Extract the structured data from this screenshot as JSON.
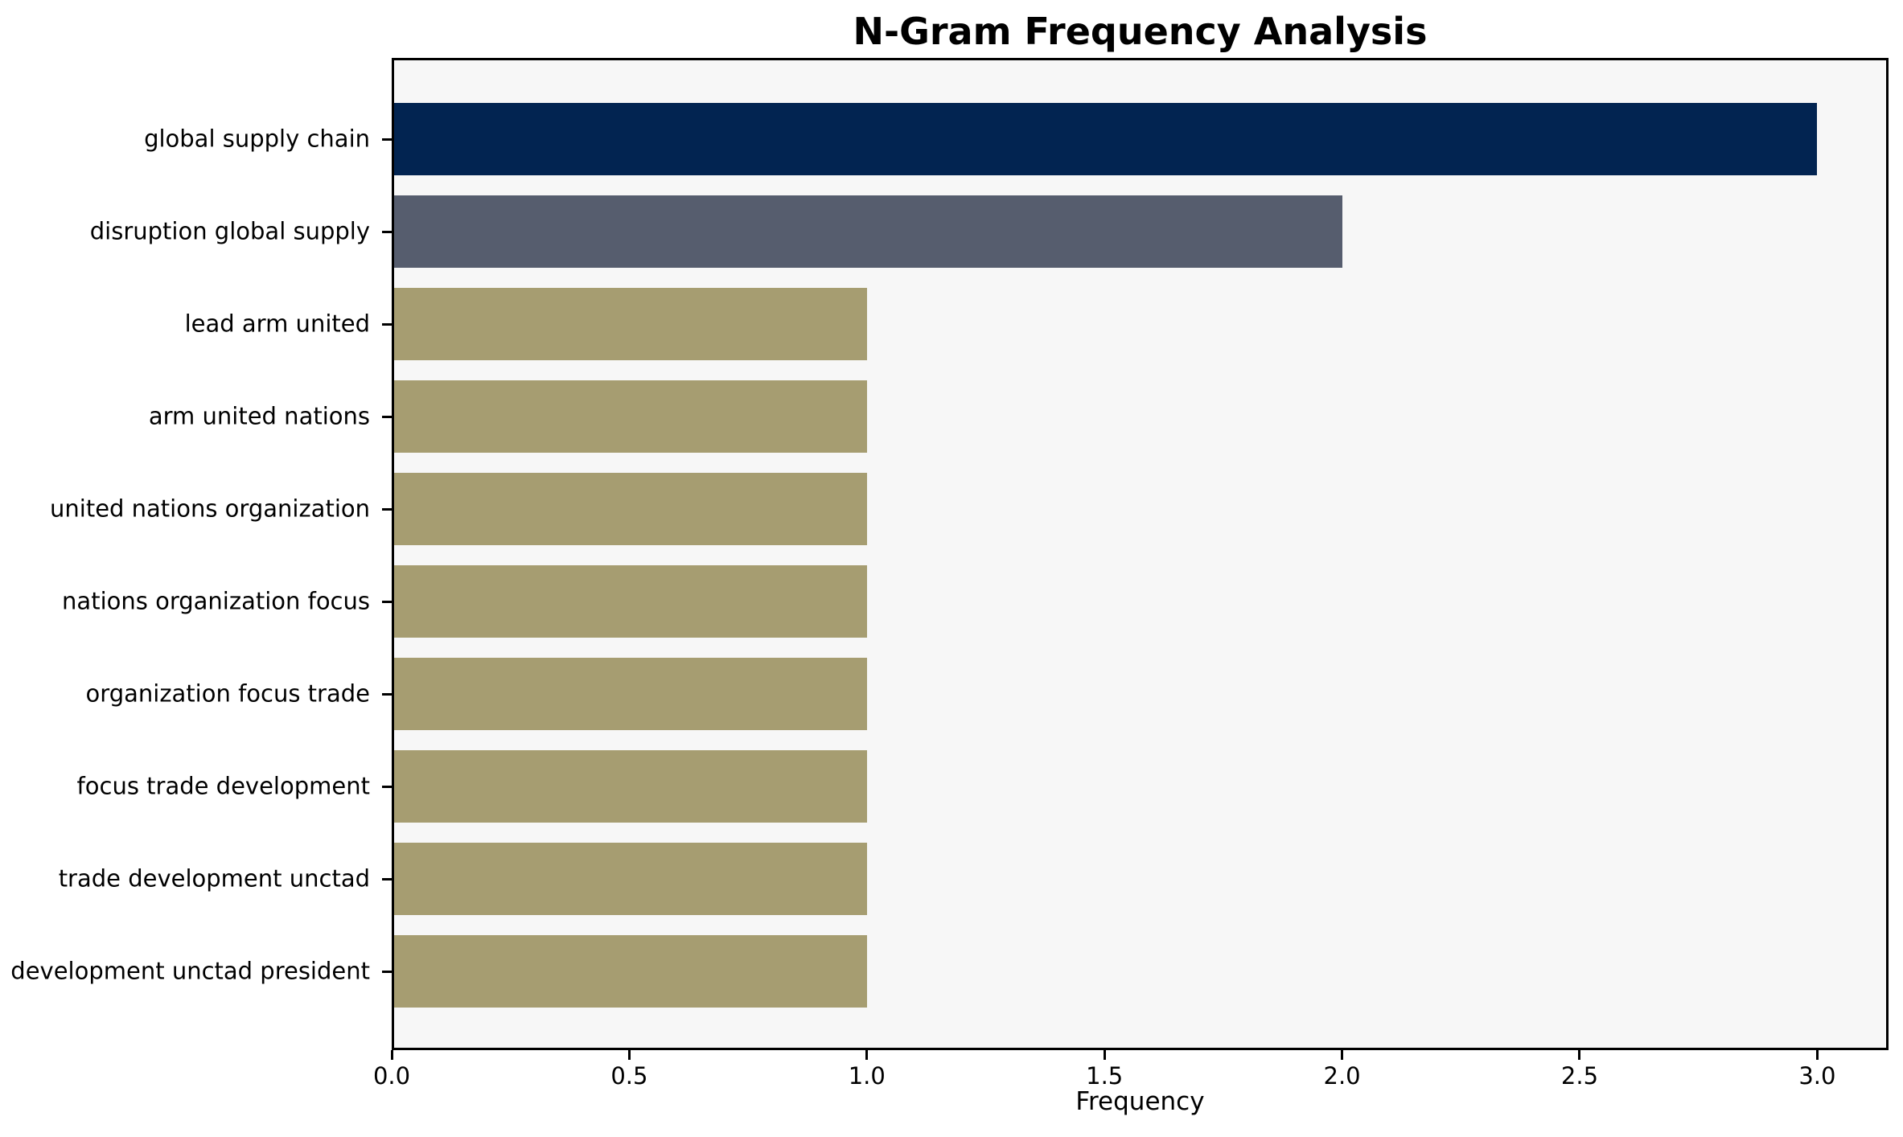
{
  "chart_data": {
    "type": "bar",
    "orientation": "horizontal",
    "title": "N-Gram Frequency Analysis",
    "xlabel": "Frequency",
    "ylabel": "",
    "categories": [
      "global supply chain",
      "disruption global supply",
      "lead arm united",
      "arm united nations",
      "united nations organization",
      "nations organization focus",
      "organization focus trade",
      "focus trade development",
      "trade development unctad",
      "development unctad president"
    ],
    "values": [
      3,
      2,
      1,
      1,
      1,
      1,
      1,
      1,
      1,
      1
    ],
    "bar_colors": [
      "#022451",
      "#565d6e",
      "#a69d71",
      "#a69d71",
      "#a69d71",
      "#a69d71",
      "#a69d71",
      "#a69d71",
      "#a69d71",
      "#a69d71"
    ],
    "xlim": [
      0,
      3.15
    ],
    "xticks": [
      0,
      0.5,
      1.0,
      1.5,
      2.0,
      2.5,
      3.0
    ],
    "xtick_labels": [
      "0.0",
      "0.5",
      "1.0",
      "1.5",
      "2.0",
      "2.5",
      "3.0"
    ],
    "grid": false,
    "legend": "none",
    "colors": {
      "plot_background": "#f7f7f7",
      "figure_background": "#ffffff",
      "spine": "#000000",
      "text": "#000000"
    }
  }
}
